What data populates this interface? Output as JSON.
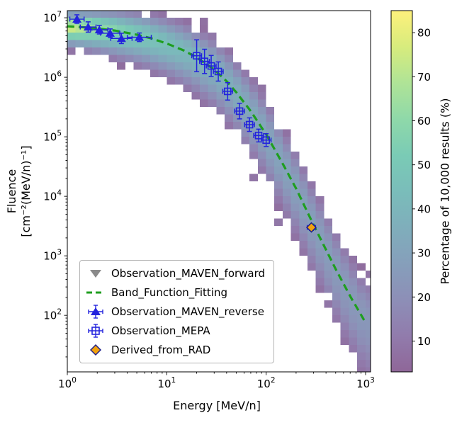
{
  "figure": {
    "xlabel": "Energy [MeV/n]",
    "ylabel_line1": "Fluence",
    "ylabel_line2": "[cm⁻²(MeV/n)⁻¹]",
    "colorbar_label": "Percentage of 10,000 results (%)"
  },
  "legend": {
    "items": [
      {
        "label": "Observation_MAVEN_forward",
        "marker": "triangle-down",
        "color": "#8a8a8a"
      },
      {
        "label": "Band_Function_Fitting",
        "marker": "dashed-line",
        "color": "#1f9e1f"
      },
      {
        "label": "Observation_MAVEN_reverse",
        "marker": "triangle-up",
        "color": "#2323dd"
      },
      {
        "label": "Observation_MEPA",
        "marker": "square-plus",
        "color": "#2323dd"
      },
      {
        "label": "Derived_from_RAD",
        "marker": "diamond",
        "color": "#f2a20d",
        "edge_color": "#222288"
      }
    ]
  },
  "chart_data": {
    "type": "heatmap",
    "title": "",
    "xlabel": "Energy [MeV/n]",
    "ylabel": "Fluence [cm⁻²(MeV/n)⁻¹]",
    "xscale": "log",
    "yscale": "log",
    "xlim_log": [
      0,
      3.05
    ],
    "ylim_log": [
      1.05,
      7.12
    ],
    "x_tick_exponents": [
      0,
      1,
      2,
      3
    ],
    "y_tick_exponents": [
      2,
      3,
      4,
      5,
      6,
      7
    ],
    "grid": false,
    "legend_position": "lower left",
    "colorbar": {
      "label": "Percentage of 10,000 results (%)",
      "ticks": [
        10,
        20,
        30,
        40,
        50,
        60,
        70,
        80
      ],
      "vmin": 3,
      "vmax": 85,
      "colormap": "viridis",
      "alpha": 0.6
    },
    "series": {
      "band_fit": {
        "name": "Band_Function_Fitting",
        "color": "#1f9e1f",
        "x": [
          1,
          1.5,
          2,
          3,
          5,
          7,
          10,
          15,
          20,
          30,
          40,
          50,
          70,
          100,
          150,
          200,
          300,
          500,
          700,
          1000
        ],
        "y": [
          7200000,
          6900000,
          6600000,
          6100000,
          5200000,
          4500000,
          3700000,
          2800000,
          2150000,
          1350000,
          860000,
          560000,
          270000,
          110000,
          33000,
          13500,
          3300,
          600,
          210,
          75
        ]
      },
      "maven_reverse": {
        "name": "Observation_MAVEN_reverse",
        "color": "#2323dd",
        "points": [
          {
            "x": 1.25,
            "y": 9500000,
            "xf": 1.18,
            "yf": 1.18
          },
          {
            "x": 1.62,
            "y": 7000000,
            "xf": 1.2,
            "yf": 1.22
          },
          {
            "x": 2.1,
            "y": 6300000,
            "xf": 1.22,
            "yf": 1.18
          },
          {
            "x": 2.7,
            "y": 5500000,
            "xf": 1.25,
            "yf": 1.18
          },
          {
            "x": 3.5,
            "y": 4500000,
            "xf": 1.28,
            "yf": 1.22
          },
          {
            "x": 5.3,
            "y": 4700000,
            "xf": 1.32,
            "yf": 1.18
          }
        ]
      },
      "mepa": {
        "name": "Observation_MEPA",
        "color": "#2323dd",
        "points": [
          {
            "x": 20,
            "y": 2300000,
            "xf": 1.12,
            "yf": 1.85
          },
          {
            "x": 24,
            "y": 1850000,
            "xf": 1.12,
            "yf": 1.6
          },
          {
            "x": 28,
            "y": 1550000,
            "xf": 1.12,
            "yf": 1.5
          },
          {
            "x": 33,
            "y": 1250000,
            "xf": 1.12,
            "yf": 1.45
          },
          {
            "x": 41,
            "y": 580000,
            "xf": 1.12,
            "yf": 1.4
          },
          {
            "x": 54,
            "y": 270000,
            "xf": 1.12,
            "yf": 1.35
          },
          {
            "x": 68,
            "y": 160000,
            "xf": 1.12,
            "yf": 1.3
          },
          {
            "x": 84,
            "y": 105000,
            "xf": 1.12,
            "yf": 1.28
          },
          {
            "x": 100,
            "y": 88000,
            "xf": 1.12,
            "yf": 1.28
          }
        ]
      },
      "rad": {
        "name": "Derived_from_RAD",
        "fill_color": "#f2a20d",
        "edge_color": "#222288",
        "point": {
          "x": 285,
          "y": 3000,
          "xf": 1.1,
          "yf": 1.12
        }
      }
    },
    "heatmap_model": {
      "x_bin_decades": 0.0833,
      "y_bin_decades": 0.125,
      "sigma_base": 0.155,
      "sigma_per_decade": 0.115,
      "sigma_below_mult": 1.25,
      "sigma_above_mult": 0.95,
      "peak_numerator": 12,
      "peak_min": 14,
      "peak_max": 82
    }
  }
}
